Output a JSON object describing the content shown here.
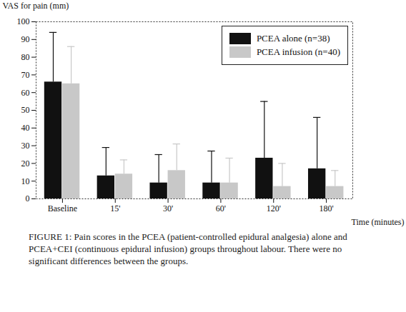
{
  "chart_data": {
    "type": "bar",
    "y_label": "VAS for pain (mm)",
    "x_label": "Time (minutes)",
    "caption": "FIGURE 1: Pain scores in the PCEA (patient-controlled epidural analgesia) alone and PCEA+CEI (continuous epidural infusion) groups throughout labour. There were no significant differences between the groups.",
    "categories": [
      "Baseline",
      "15'",
      "30'",
      "60'",
      "120'",
      "180'"
    ],
    "series": [
      {
        "name": "PCEA alone (n=38)",
        "color": "#111111",
        "values": [
          66,
          13,
          9,
          9,
          23,
          17
        ],
        "errors": [
          28,
          16,
          16,
          18,
          32,
          29
        ]
      },
      {
        "name": "PCEA infusion (n=40)",
        "color": "#c8c8c8",
        "values": [
          65,
          14,
          16,
          9,
          7,
          7
        ],
        "errors": [
          21,
          8,
          15,
          14,
          13,
          9
        ]
      }
    ],
    "ylim": [
      0,
      100
    ],
    "yticks": [
      0,
      10,
      20,
      30,
      40,
      50,
      60,
      70,
      80,
      90,
      100
    ],
    "grid": false,
    "legend": "top-right"
  }
}
